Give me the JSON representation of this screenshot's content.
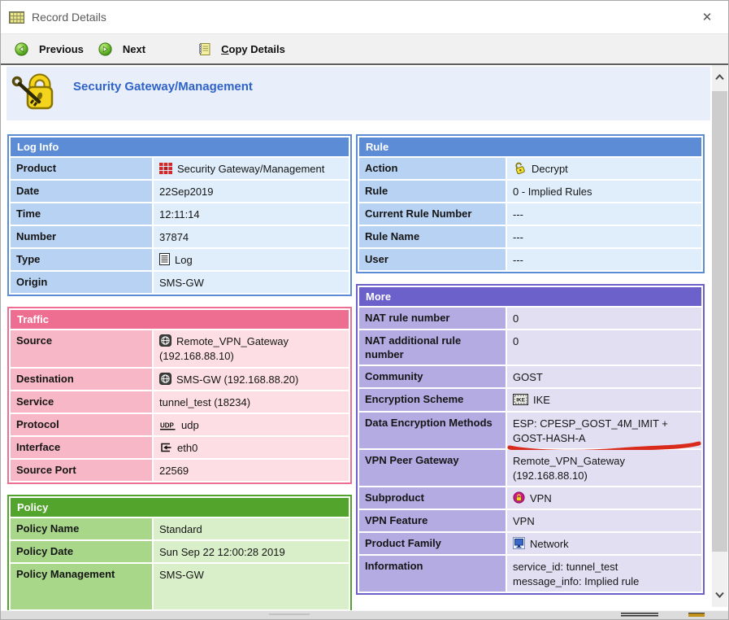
{
  "window": {
    "title": "Record Details",
    "close_glyph": "✕"
  },
  "toolbar": {
    "previous_label": "Previous",
    "next_label": "Next",
    "copy_accel": "C",
    "copy_rest": "opy Details"
  },
  "banner": {
    "title": "Security Gateway/Management"
  },
  "annotation": {
    "type": "hand-drawn-underline",
    "color": "#d92b1b"
  },
  "icons": {
    "products-grid-icon": "red product bricks grid",
    "log-icon": "document page with lines",
    "decrypt-key-icon": "yellow open padlock with key",
    "gateway-icon": "dark square with white globe",
    "udp-icon": "UDP underlined text glyph",
    "interface-in-icon": "bracket with inbound left arrow",
    "ike-icon": "framed IKE stamp",
    "vpn-lock-icon": "magenta circle with yellow padlock",
    "network-icon": "blue computer monitor"
  },
  "layout": {
    "left": [
      "log_info",
      "traffic",
      "policy"
    ],
    "right": [
      "rule",
      "more"
    ]
  },
  "sections": {
    "log_info": {
      "title": "Log Info",
      "theme": {
        "header": "#5c8cd6",
        "label": "#b7d2f2",
        "value": "#e0eefb"
      },
      "rows": [
        {
          "label": "Product",
          "icon": "products-grid-icon",
          "value": "Security Gateway/Management"
        },
        {
          "label": "Date",
          "value": "22Sep2019"
        },
        {
          "label": "Time",
          "value": "12:11:14"
        },
        {
          "label": "Number",
          "value": "37874"
        },
        {
          "label": "Type",
          "icon": "log-icon",
          "value": "Log"
        },
        {
          "label": "Origin",
          "value": "SMS-GW"
        }
      ]
    },
    "traffic": {
      "title": "Traffic",
      "theme": {
        "header": "#ee6e91",
        "label": "#f8b7c6",
        "value": "#fcdee4"
      },
      "rows": [
        {
          "label": "Source",
          "icon": "gateway-icon",
          "value": "Remote_VPN_Gateway\n(192.168.88.10)"
        },
        {
          "label": "Destination",
          "icon": "gateway-icon",
          "value": "SMS-GW (192.168.88.20)"
        },
        {
          "label": "Service",
          "value": "tunnel_test (18234)"
        },
        {
          "label": "Protocol",
          "icon": "udp-icon",
          "value": "udp"
        },
        {
          "label": "Interface",
          "icon": "interface-in-icon",
          "value": "eth0"
        },
        {
          "label": "Source Port",
          "value": "22569"
        }
      ]
    },
    "policy": {
      "title": "Policy",
      "theme": {
        "header": "#53a42c",
        "label": "#a9d789",
        "value": "#d9efc9"
      },
      "rows": [
        {
          "label": "Policy Name",
          "value": "Standard"
        },
        {
          "label": "Policy Date",
          "value": "Sun Sep 22 12:00:28 2019"
        },
        {
          "label": "Policy Management",
          "value": "SMS-GW",
          "tall": true
        }
      ]
    },
    "rule": {
      "title": "Rule",
      "theme": {
        "header": "#5c8cd6",
        "label": "#b7d2f2",
        "value": "#e0eefb"
      },
      "rows": [
        {
          "label": "Action",
          "icon": "decrypt-key-icon",
          "value": "Decrypt"
        },
        {
          "label": "Rule",
          "value": "0 - Implied Rules"
        },
        {
          "label": "Current Rule Number",
          "value": "---"
        },
        {
          "label": "Rule Name",
          "value": "---"
        },
        {
          "label": "User",
          "value": "---"
        }
      ]
    },
    "more": {
      "title": "More",
      "theme": {
        "header": "#6c60ca",
        "label": "#b4abe3",
        "value": "#e3dff3"
      },
      "rows": [
        {
          "label": "NAT rule number",
          "value": "0"
        },
        {
          "label": "NAT additional rule number",
          "value": "0"
        },
        {
          "label": "Community",
          "value": "GOST"
        },
        {
          "label": "Encryption Scheme",
          "icon": "ike-icon",
          "value": "IKE"
        },
        {
          "label": "Data Encryption Methods",
          "value": "ESP: CPESP_GOST_4M_IMIT +\nGOST-HASH-A",
          "underline": true
        },
        {
          "label": "VPN Peer Gateway",
          "value": "Remote_VPN_Gateway\n(192.168.88.10)"
        },
        {
          "label": "Subproduct",
          "icon": "vpn-lock-icon",
          "value": "VPN"
        },
        {
          "label": "VPN Feature",
          "value": "VPN"
        },
        {
          "label": "Product Family",
          "icon": "network-icon",
          "value": "Network"
        },
        {
          "label": "Information",
          "value": "service_id: tunnel_test\nmessage_info: Implied rule"
        }
      ]
    }
  }
}
